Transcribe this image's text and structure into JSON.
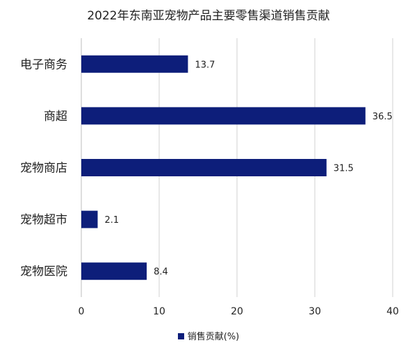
{
  "chart_data": {
    "type": "bar",
    "orientation": "horizontal",
    "title": "2022年东南亚宠物产品主要零售渠道销售贡献",
    "categories": [
      "电子商务",
      "商超",
      "宠物商店",
      "宠物超市",
      "宠物医院"
    ],
    "series": [
      {
        "name": "销售贡献(%)",
        "values": [
          13.7,
          36.5,
          31.5,
          2.1,
          8.4
        ],
        "color": "#0d1e7a"
      }
    ],
    "value_labels": [
      "13.7",
      "36.5",
      "31.5",
      "2.1",
      "8.4"
    ],
    "xlim": [
      0,
      40
    ],
    "x_ticks": [
      "0",
      "10",
      "20",
      "30",
      "40"
    ],
    "grid": "vertical",
    "legend_position": "bottom",
    "gridline_color": "#d0d0d0"
  }
}
